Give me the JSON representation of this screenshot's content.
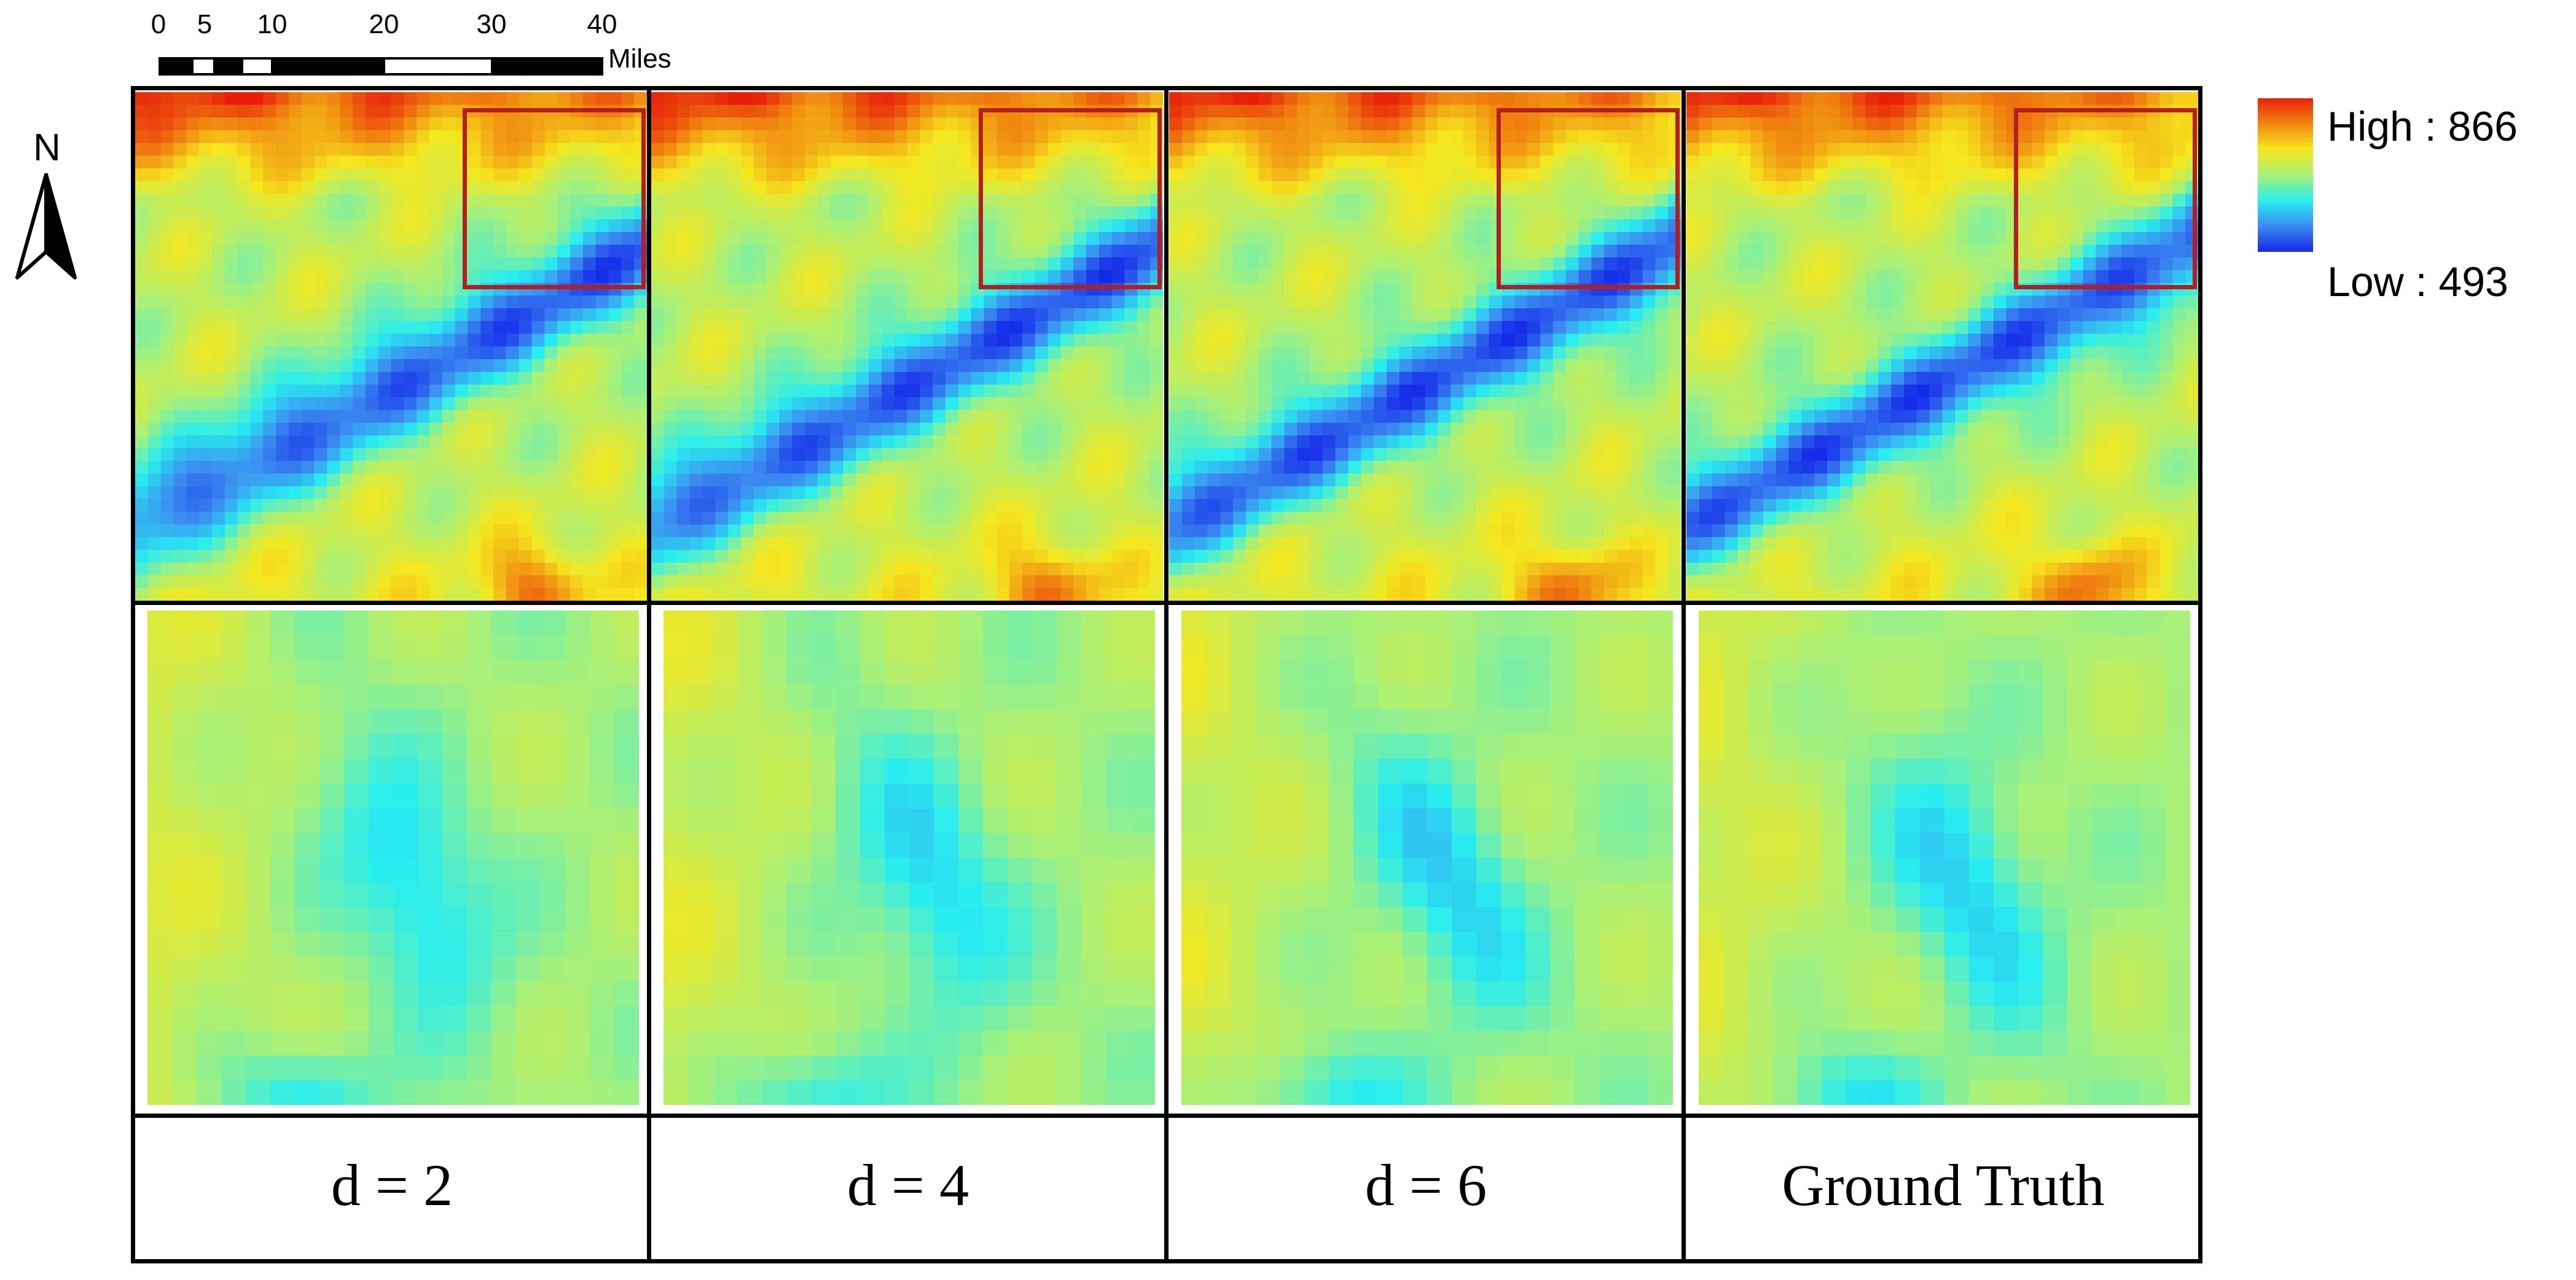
{
  "scale_bar": {
    "ticks": [
      "0",
      "5",
      "10",
      "20",
      "30",
      "40"
    ],
    "unit": "Miles"
  },
  "north_arrow": {
    "label": "N",
    "icon": "north-arrow-icon"
  },
  "legend": {
    "high_label": "High : 866",
    "low_label": "Low : 493",
    "gradient_colors": [
      "#e8200a",
      "#f08a10",
      "#f5e81e",
      "#a8f078",
      "#28eef0",
      "#3c8cf0",
      "#1428e8"
    ]
  },
  "panels": [
    {
      "caption": "d = 2"
    },
    {
      "caption": "d = 4"
    },
    {
      "caption": "d = 6"
    },
    {
      "caption": "Ground Truth"
    }
  ],
  "colors": {
    "zoom_box": "#b41e1e",
    "frame": "#000000"
  }
}
